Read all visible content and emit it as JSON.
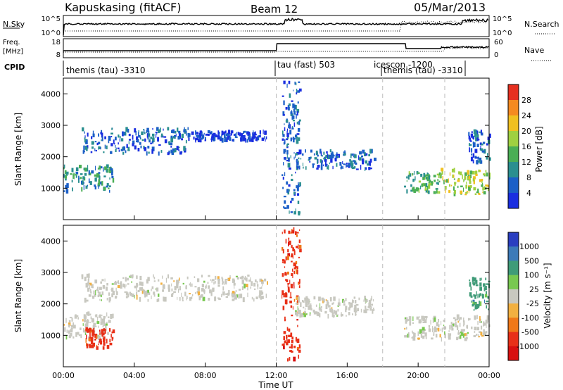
{
  "header": {
    "station": "Kapuskasing (fitACF)",
    "beam": "Beam 12",
    "date": "05/Mar/2013"
  },
  "strips": {
    "sky": {
      "label": "N.Sky",
      "ticks_left": [
        "10^5",
        "10^0"
      ],
      "ticks_right": [
        "10^5",
        "10^0"
      ],
      "right_label": "N.Search"
    },
    "freq": {
      "label_top": "Freq.",
      "label_bottom": "[MHz]",
      "ticks_left": [
        "18",
        "8"
      ],
      "ticks_right": [
        "60",
        "0"
      ],
      "right_label": "Nave"
    },
    "cpid": {
      "label": "CPID",
      "segments": [
        {
          "start_h": 0.0,
          "text": "themis (tau) -3310"
        },
        {
          "start_h": 12.0,
          "text": "tau (fast) 503"
        },
        {
          "start_h": 18.0,
          "text": "icescon -1200"
        },
        {
          "start_h": 18.0,
          "text": "themis (tau) -3310"
        }
      ]
    }
  },
  "chart_data": [
    {
      "type": "heatmap",
      "name": "power",
      "ylabel": "Slant Range [km]",
      "ylim": [
        0,
        4500
      ],
      "yticks": [
        "1000",
        "2000",
        "3000",
        "4000"
      ],
      "xlim_hours": [
        0,
        24
      ],
      "colorbar": {
        "label": "Power [dB]",
        "ticks": [
          "4",
          "8",
          "12",
          "16",
          "20",
          "24",
          "28"
        ],
        "colors": [
          "#1a2ee0",
          "#1b5fc7",
          "#2a8f8f",
          "#4aae55",
          "#9fd040",
          "#f0c020",
          "#f58a20",
          "#e63020"
        ]
      },
      "echo_regions": [
        {
          "t": [
            0.0,
            2.8
          ],
          "r": [
            900,
            1700
          ],
          "power_db": 12
        },
        {
          "t": [
            1.0,
            7.0
          ],
          "r": [
            2100,
            2900
          ],
          "power_db": 8
        },
        {
          "t": [
            7.0,
            11.5
          ],
          "r": [
            2500,
            2800
          ],
          "power_db": 4
        },
        {
          "t": [
            12.3,
            13.3
          ],
          "r": [
            200,
            4400
          ],
          "power_db": 6
        },
        {
          "t": [
            13.0,
            17.5
          ],
          "r": [
            1600,
            2200
          ],
          "power_db": 8
        },
        {
          "t": [
            19.2,
            21.2
          ],
          "r": [
            850,
            1500
          ],
          "power_db": 14
        },
        {
          "t": [
            21.2,
            24.0
          ],
          "r": [
            800,
            1600
          ],
          "power_db": 20
        },
        {
          "t": [
            22.8,
            24.0
          ],
          "r": [
            1800,
            2800
          ],
          "power_db": 8
        }
      ]
    },
    {
      "type": "heatmap",
      "name": "velocity",
      "ylabel": "Slant Range [km]",
      "ylim": [
        0,
        4500
      ],
      "yticks": [
        "1000",
        "2000",
        "3000",
        "4000"
      ],
      "xlim_hours": [
        0,
        24
      ],
      "xticks": [
        "00:00",
        "04:00",
        "08:00",
        "12:00",
        "16:00",
        "20:00",
        "00:00"
      ],
      "xlabel": "Time UT",
      "colorbar": {
        "label": "Velocity [m s⁻¹]",
        "ticks": [
          "1000",
          "500",
          "100",
          "25",
          "-25",
          "-100",
          "-500",
          "-1000"
        ],
        "colors": [
          "#2a3ec0",
          "#3c7ab8",
          "#3f9b78",
          "#78c850",
          "#c8c8c0",
          "#f2b040",
          "#f07818",
          "#e83018",
          "#d81010"
        ]
      },
      "echo_regions": [
        {
          "t": [
            0.0,
            2.8
          ],
          "r": [
            900,
            1700
          ],
          "velocity": 0
        },
        {
          "t": [
            1.2,
            2.8
          ],
          "r": [
            550,
            1200
          ],
          "velocity": -500
        },
        {
          "t": [
            1.0,
            11.5
          ],
          "r": [
            2100,
            2900
          ],
          "velocity": 0
        },
        {
          "t": [
            12.3,
            13.3
          ],
          "r": [
            200,
            4400
          ],
          "velocity": -500
        },
        {
          "t": [
            13.0,
            17.5
          ],
          "r": [
            1600,
            2200
          ],
          "velocity": 0
        },
        {
          "t": [
            19.2,
            24.0
          ],
          "r": [
            850,
            1600
          ],
          "velocity": 0
        },
        {
          "t": [
            22.8,
            24.0
          ],
          "r": [
            1800,
            2800
          ],
          "velocity": 100
        }
      ]
    }
  ]
}
